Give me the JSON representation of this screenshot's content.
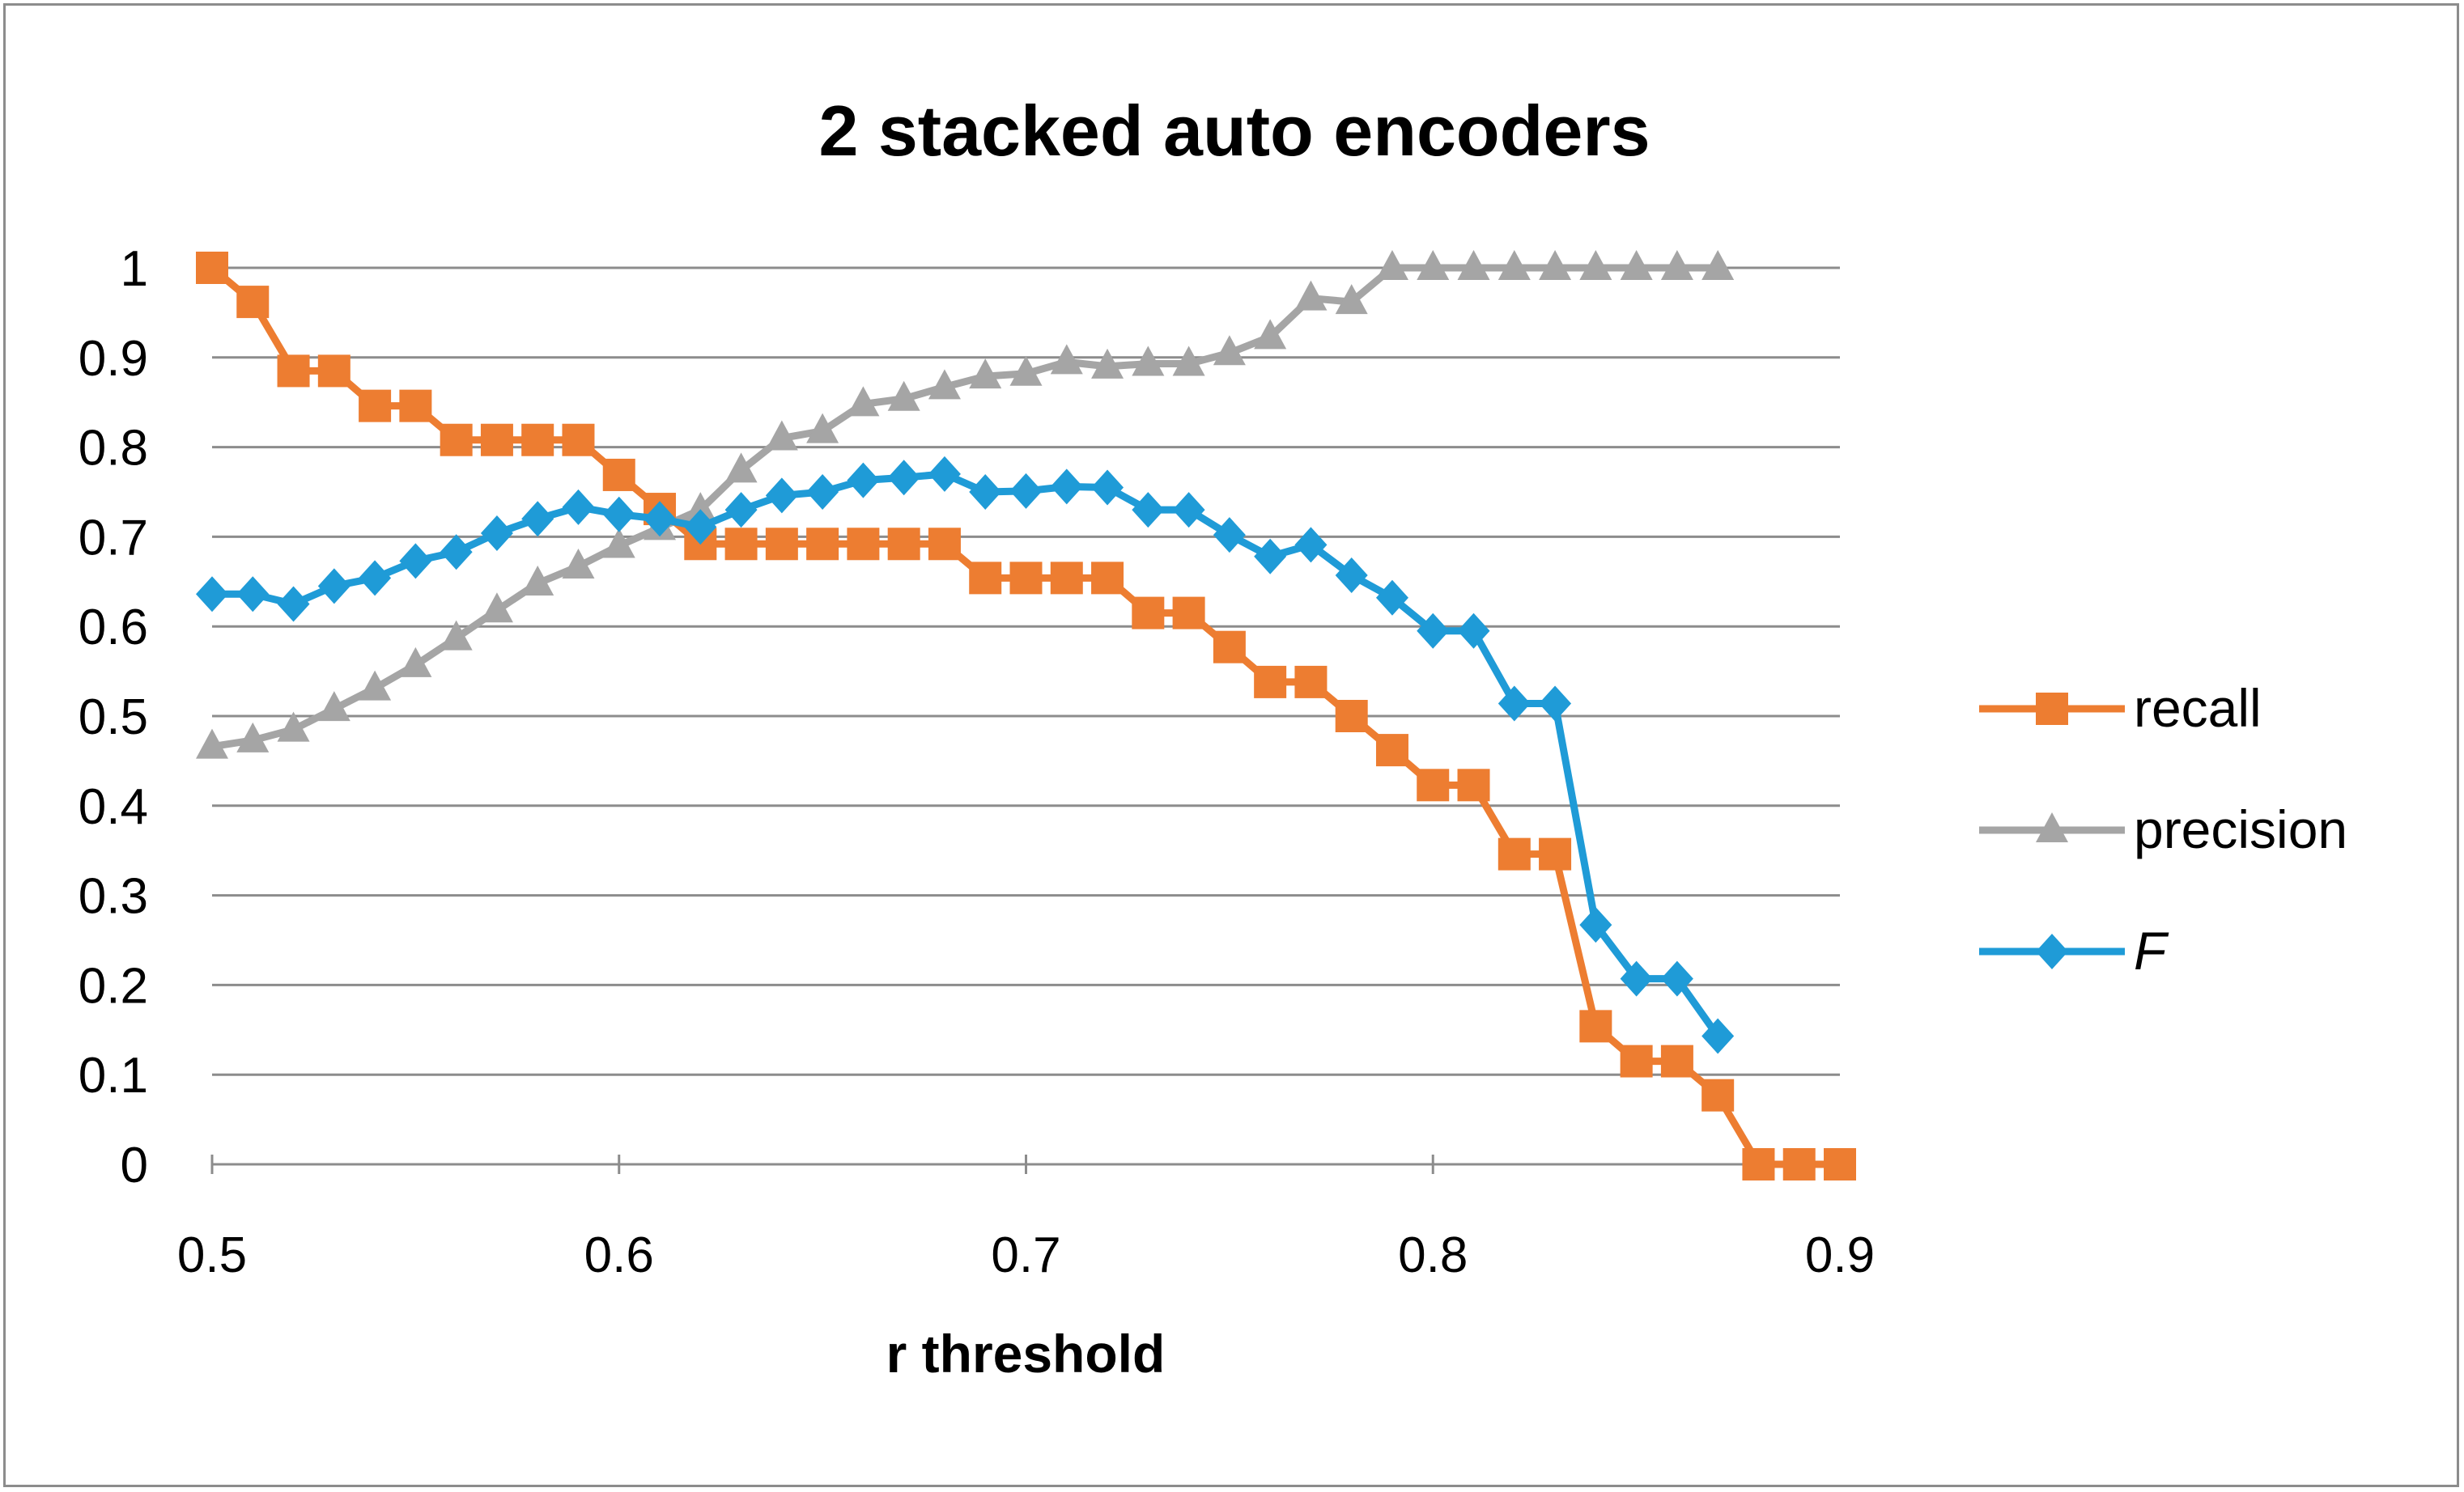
{
  "chart_data": {
    "type": "line",
    "title": "2 stacked auto encoders",
    "xlabel": "r threshold",
    "ylabel": "",
    "xlim": [
      0.5,
      0.9
    ],
    "ylim": [
      0,
      1
    ],
    "xticks": [
      "0.5",
      "0.6",
      "0.7",
      "0.8",
      "0.9"
    ],
    "yticks": [
      "0",
      "0.1",
      "0.2",
      "0.3",
      "0.4",
      "0.5",
      "0.6",
      "0.7",
      "0.8",
      "0.9",
      "1"
    ],
    "grid": "horizontal",
    "legend_position": "right",
    "series": [
      {
        "name": "recall",
        "color": "#ED7D31",
        "marker": "square",
        "x": [
          0.5,
          0.51,
          0.52,
          0.53,
          0.54,
          0.55,
          0.56,
          0.57,
          0.58,
          0.59,
          0.6,
          0.61,
          0.62,
          0.63,
          0.64,
          0.65,
          0.66,
          0.67,
          0.68,
          0.69,
          0.7,
          0.71,
          0.72,
          0.73,
          0.74,
          0.75,
          0.76,
          0.77,
          0.78,
          0.79,
          0.8,
          0.81,
          0.82,
          0.83,
          0.84,
          0.85,
          0.86,
          0.87,
          0.88,
          0.89,
          0.9
        ],
        "values": [
          1.0,
          0.962,
          0.885,
          0.885,
          0.846,
          0.846,
          0.808,
          0.808,
          0.808,
          0.808,
          0.769,
          0.731,
          0.692,
          0.692,
          0.692,
          0.692,
          0.692,
          0.692,
          0.692,
          0.654,
          0.654,
          0.654,
          0.654,
          0.615,
          0.615,
          0.577,
          0.538,
          0.538,
          0.5,
          0.462,
          0.423,
          0.423,
          0.346,
          0.346,
          0.154,
          0.115,
          0.115,
          0.077,
          0.0,
          0.0,
          0.0
        ]
      },
      {
        "name": "precision",
        "color": "#A5A5A5",
        "marker": "triangle",
        "x": [
          0.5,
          0.51,
          0.52,
          0.53,
          0.54,
          0.55,
          0.56,
          0.57,
          0.58,
          0.59,
          0.6,
          0.61,
          0.62,
          0.63,
          0.64,
          0.65,
          0.66,
          0.67,
          0.68,
          0.69,
          0.7,
          0.71,
          0.72,
          0.73,
          0.74,
          0.75,
          0.76,
          0.77,
          0.78,
          0.79,
          0.8,
          0.81,
          0.82,
          0.83,
          0.84,
          0.85,
          0.86,
          0.87
        ],
        "values": [
          0.466,
          0.473,
          0.485,
          0.508,
          0.531,
          0.557,
          0.587,
          0.618,
          0.648,
          0.667,
          0.69,
          0.71,
          0.73,
          0.774,
          0.81,
          0.818,
          0.848,
          0.854,
          0.867,
          0.879,
          0.882,
          0.895,
          0.89,
          0.893,
          0.893,
          0.905,
          0.923,
          0.966,
          0.962,
          1.0,
          1.0,
          1.0,
          1.0,
          1.0,
          1.0,
          1.0,
          1.0,
          1.0
        ]
      },
      {
        "name": "F",
        "color": "#1F9BD7",
        "marker": "diamond",
        "x": [
          0.5,
          0.51,
          0.52,
          0.53,
          0.54,
          0.55,
          0.56,
          0.57,
          0.58,
          0.59,
          0.6,
          0.61,
          0.62,
          0.63,
          0.64,
          0.65,
          0.66,
          0.67,
          0.68,
          0.69,
          0.7,
          0.71,
          0.72,
          0.73,
          0.74,
          0.75,
          0.76,
          0.77,
          0.78,
          0.79,
          0.8,
          0.81,
          0.82,
          0.83,
          0.84,
          0.85,
          0.86,
          0.87
        ],
        "values": [
          0.636,
          0.636,
          0.625,
          0.645,
          0.654,
          0.673,
          0.683,
          0.704,
          0.72,
          0.733,
          0.725,
          0.72,
          0.711,
          0.73,
          0.746,
          0.75,
          0.763,
          0.766,
          0.77,
          0.75,
          0.751,
          0.756,
          0.755,
          0.73,
          0.73,
          0.702,
          0.678,
          0.691,
          0.657,
          0.632,
          0.595,
          0.595,
          0.514,
          0.514,
          0.267,
          0.207,
          0.207,
          0.143
        ]
      }
    ]
  }
}
